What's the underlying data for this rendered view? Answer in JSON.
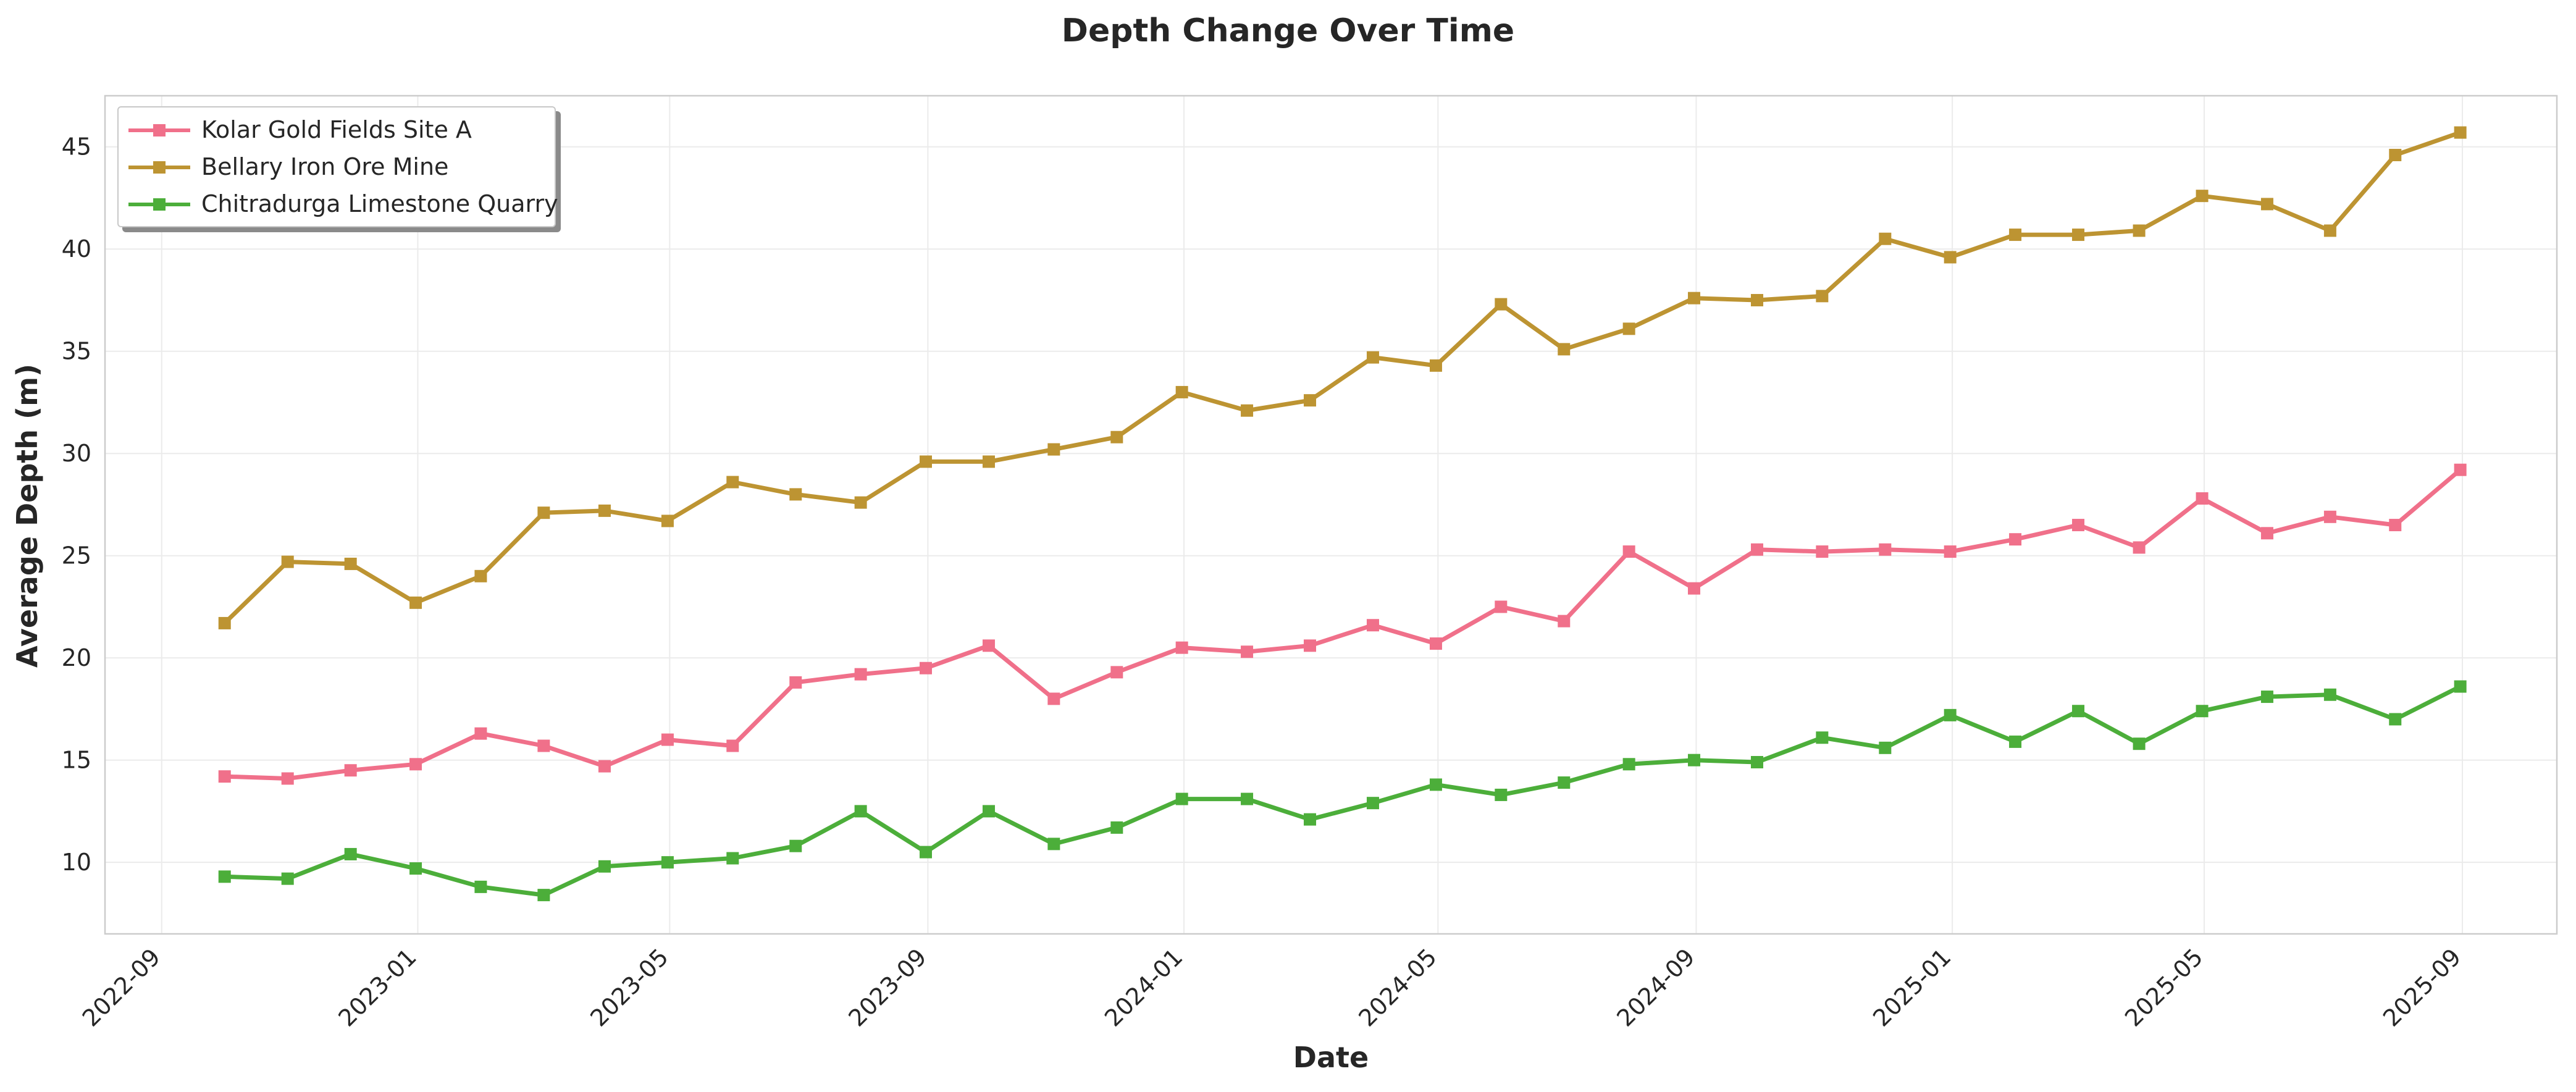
{
  "chart_data": {
    "type": "line",
    "title": "Depth Change Over Time",
    "xlabel": "Date",
    "ylabel": "Average Depth (m)",
    "x": [
      "2022-10-01",
      "2022-10-31",
      "2022-11-30",
      "2022-12-31",
      "2023-01-31",
      "2023-03-02",
      "2023-03-31",
      "2023-04-30",
      "2023-05-31",
      "2023-06-30",
      "2023-07-31",
      "2023-08-31",
      "2023-09-30",
      "2023-10-31",
      "2023-11-30",
      "2023-12-31",
      "2024-01-31",
      "2024-03-01",
      "2024-03-31",
      "2024-04-30",
      "2024-05-31",
      "2024-06-30",
      "2024-07-31",
      "2024-08-31",
      "2024-09-30",
      "2024-10-31",
      "2024-11-30",
      "2024-12-31",
      "2025-01-31",
      "2025-03-02",
      "2025-03-31",
      "2025-04-30",
      "2025-05-31",
      "2025-06-30",
      "2025-07-31",
      "2025-08-31"
    ],
    "series": [
      {
        "name": "Kolar Gold Fields Site A",
        "color": "#f0708a",
        "values": [
          14.2,
          14.1,
          14.5,
          14.8,
          16.3,
          15.7,
          14.7,
          16.0,
          15.7,
          18.8,
          19.2,
          19.5,
          20.6,
          18.0,
          19.3,
          20.5,
          20.3,
          20.6,
          21.6,
          20.7,
          22.5,
          21.8,
          25.2,
          23.4,
          25.3,
          25.2,
          25.3,
          25.2,
          25.8,
          26.5,
          25.4,
          27.8,
          26.1,
          26.9,
          26.5,
          29.2
        ]
      },
      {
        "name": "Bellary Iron Ore Mine",
        "color": "#bd9432",
        "values": [
          21.7,
          24.7,
          24.6,
          22.7,
          24.0,
          27.1,
          27.2,
          26.7,
          28.6,
          28.0,
          27.6,
          29.6,
          29.6,
          30.2,
          30.8,
          33.0,
          32.1,
          32.6,
          34.7,
          34.3,
          37.3,
          35.1,
          36.1,
          37.6,
          37.5,
          37.7,
          40.5,
          39.6,
          40.7,
          40.7,
          40.9,
          42.6,
          42.2,
          40.9,
          44.6,
          45.7
        ]
      },
      {
        "name": "Chitradurga Limestone Quarry",
        "color": "#4cae3a",
        "values": [
          9.3,
          9.2,
          10.4,
          9.7,
          8.8,
          8.4,
          9.8,
          10.0,
          10.2,
          10.8,
          12.5,
          10.5,
          12.5,
          10.9,
          11.7,
          13.1,
          13.1,
          12.1,
          12.9,
          13.8,
          13.3,
          13.9,
          14.8,
          15.0,
          14.9,
          16.1,
          15.6,
          17.2,
          15.9,
          17.4,
          15.8,
          17.4,
          18.1,
          18.2,
          17.0,
          18.6
        ]
      }
    ],
    "xticks": [
      "2022-09",
      "2023-01",
      "2023-05",
      "2023-09",
      "2024-01",
      "2024-05",
      "2024-09",
      "2025-01",
      "2025-05",
      "2025-09"
    ],
    "yticks": [
      10,
      15,
      20,
      25,
      30,
      35,
      40,
      45
    ],
    "ylim": [
      6.5,
      47.5
    ],
    "xlim": [
      "2022-08-05",
      "2025-10-16"
    ],
    "grid": true,
    "legend_position": "top-left",
    "marker": "square"
  }
}
